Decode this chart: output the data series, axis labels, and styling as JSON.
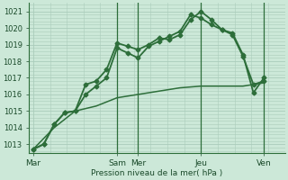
{
  "bg_color": "#cce8d8",
  "grid_color": "#aaccbb",
  "line_color": "#2d6e3a",
  "xlabel": "Pression niveau de la mer( hPa )",
  "ylim": [
    1012.5,
    1021.5
  ],
  "yticks": [
    1013,
    1014,
    1015,
    1016,
    1017,
    1018,
    1019,
    1020,
    1021
  ],
  "xtick_labels": [
    "Mar",
    "",
    "Sam",
    "Mer",
    "",
    "Jeu",
    "",
    "Ven"
  ],
  "xtick_pos": [
    0,
    2,
    4,
    5,
    6.5,
    8,
    9.5,
    11
  ],
  "xlim": [
    -0.2,
    12.0
  ],
  "series": [
    {
      "x": [
        0,
        0.5,
        1.0,
        1.5,
        2.0,
        2.5,
        3.0,
        3.5,
        4.0,
        4.5,
        5.0,
        5.5,
        6.0,
        6.5,
        7.0,
        7.5,
        8.0,
        8.5,
        9.0,
        9.5,
        10.0,
        10.5,
        11.0
      ],
      "y": [
        1012.7,
        1013.0,
        1014.2,
        1014.9,
        1015.0,
        1016.6,
        1016.8,
        1017.5,
        1019.1,
        1018.9,
        1018.7,
        1019.0,
        1019.4,
        1019.3,
        1019.6,
        1020.5,
        1021.0,
        1020.5,
        1019.9,
        1019.7,
        1018.4,
        1016.1,
        1017.0
      ],
      "marker": "D",
      "markersize": 2.5,
      "linewidth": 1.3
    },
    {
      "x": [
        0,
        0.5,
        1.0,
        1.5,
        2.0,
        2.5,
        3.0,
        3.5,
        4.0,
        4.5,
        5.0,
        5.5,
        6.0,
        6.5,
        7.0,
        7.5,
        8.0,
        8.5,
        9.0,
        9.5,
        10.0,
        10.5,
        11.0
      ],
      "y": [
        1012.7,
        1013.0,
        1014.2,
        1014.9,
        1015.0,
        1016.0,
        1016.5,
        1017.0,
        1018.8,
        1018.5,
        1018.2,
        1018.9,
        1019.2,
        1019.5,
        1019.8,
        1020.8,
        1020.6,
        1020.2,
        1019.9,
        1019.6,
        1018.3,
        1016.6,
        1016.8
      ],
      "marker": "D",
      "markersize": 2.5,
      "linewidth": 1.3
    },
    {
      "x": [
        0,
        1.0,
        2.0,
        3.0,
        4.0,
        5.0,
        6.0,
        7.0,
        8.0,
        9.0,
        10.0,
        11.0
      ],
      "y": [
        1012.7,
        1014.0,
        1015.0,
        1015.3,
        1015.8,
        1016.0,
        1016.2,
        1016.4,
        1016.5,
        1016.5,
        1016.5,
        1016.7
      ],
      "marker": null,
      "markersize": 0,
      "linewidth": 1.1
    }
  ],
  "vlines_x": [
    4,
    5,
    8,
    11
  ],
  "vline_color": "#2d6e3a",
  "minor_grid_divisions": 5,
  "figsize": [
    3.2,
    2.0
  ],
  "dpi": 100
}
